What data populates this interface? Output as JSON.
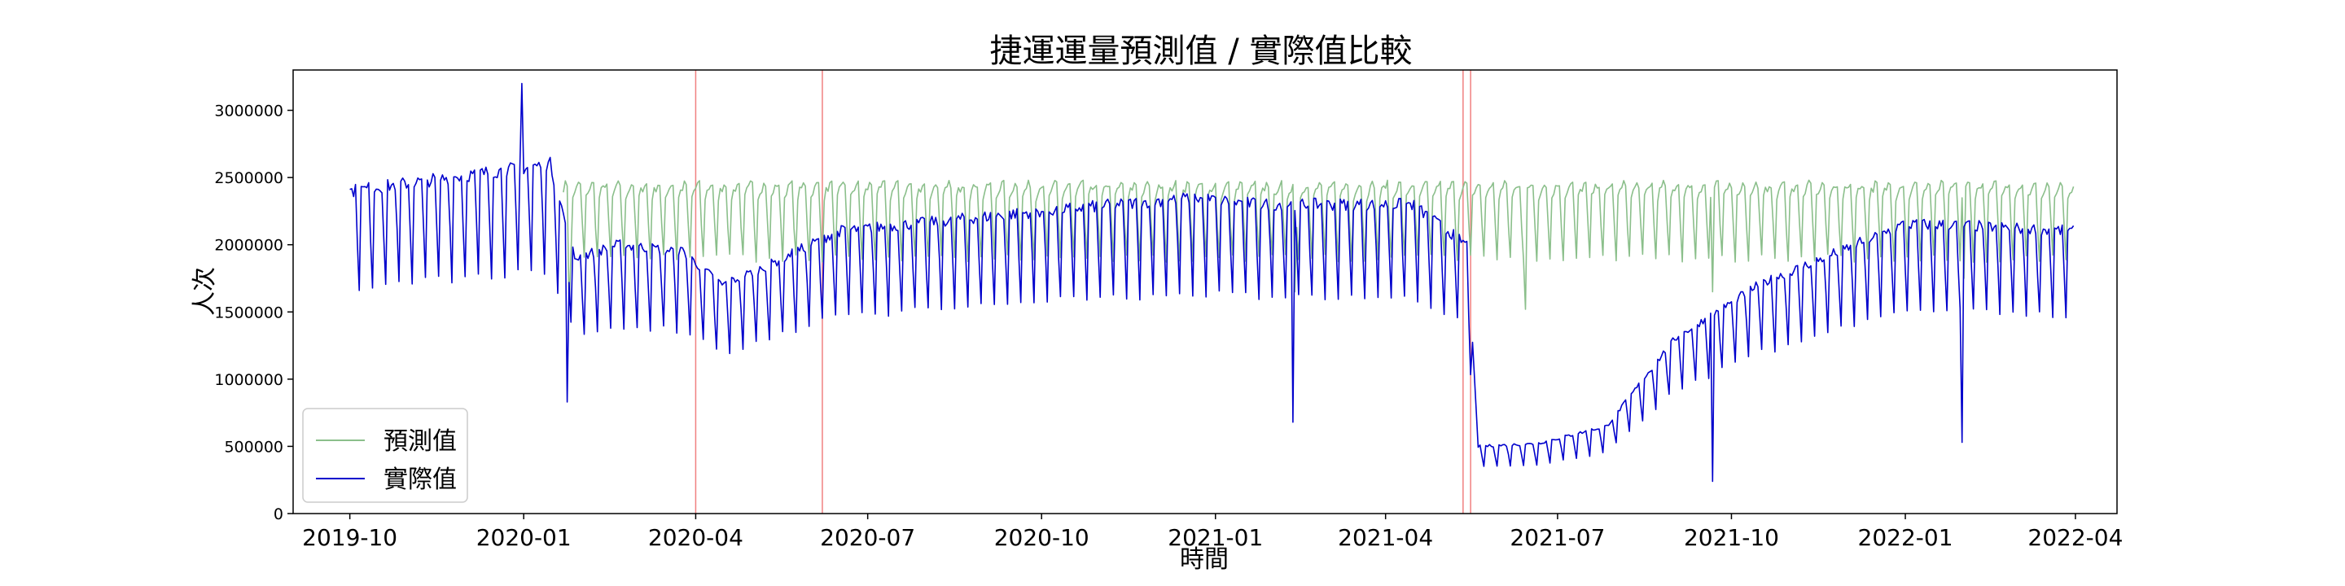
{
  "chart_data": {
    "type": "line",
    "title": "捷運運量預測值 / 實際值比較",
    "xlabel": "時間",
    "ylabel": "人次",
    "ylim": [
      0,
      3300000
    ],
    "y_ticks": [
      0,
      500000,
      1000000,
      1500000,
      2000000,
      2500000,
      3000000
    ],
    "x_ticks": [
      "2019-10",
      "2020-01",
      "2020-04",
      "2020-07",
      "2020-10",
      "2021-01",
      "2021-04",
      "2021-07",
      "2021-10",
      "2022-01",
      "2022-04"
    ],
    "x_range": [
      "2019-09-01",
      "2022-04-23"
    ],
    "grid": false,
    "legend": "bottom-left",
    "vertical_markers": [
      "2020-04-01",
      "2020-06-07",
      "2021-05-12",
      "2021-05-16"
    ],
    "colors": {
      "predicted": "#8bbf8b",
      "actual": "#0000cc",
      "marker": "#f08080",
      "axis": "#000000"
    },
    "series": [
      {
        "name": "預測值",
        "color": "#8bbf8b",
        "start": "2020-01-22",
        "end": "2022-03-31",
        "weekly_pattern": {
          "weekday": [
            2350000,
            2400000,
            2420000,
            2450000,
            2450000
          ],
          "saturday": 2150000,
          "sunday": 1900000
        },
        "holiday_dips": [
          {
            "date": "2020-01-25",
            "value": 1550000
          },
          {
            "date": "2021-02-12",
            "value": 1650000
          },
          {
            "date": "2021-06-14",
            "value": 1520000
          },
          {
            "date": "2021-09-21",
            "value": 1650000
          },
          {
            "date": "2022-02-01",
            "value": 1750000
          }
        ]
      },
      {
        "name": "實際值",
        "color": "#0000cc",
        "start": "2019-10-01",
        "end": "2022-03-31",
        "weekday_level": [
          [
            "2019-10-01",
            2400000
          ],
          [
            "2020-01-15",
            2600000
          ],
          [
            "2020-01-28",
            1900000
          ],
          [
            "2020-02-20",
            2000000
          ],
          [
            "2020-03-25",
            1950000
          ],
          [
            "2020-04-15",
            1700000
          ],
          [
            "2020-05-10",
            1850000
          ],
          [
            "2020-06-15",
            2100000
          ],
          [
            "2020-10-01",
            2250000
          ],
          [
            "2020-12-20",
            2350000
          ],
          [
            "2021-01-25",
            2300000
          ],
          [
            "2021-04-15",
            2300000
          ],
          [
            "2021-05-14",
            2000000
          ],
          [
            "2021-05-20",
            500000
          ],
          [
            "2021-06-20",
            520000
          ],
          [
            "2021-07-27",
            650000
          ],
          [
            "2021-09-01",
            1300000
          ],
          [
            "2021-10-15",
            1700000
          ],
          [
            "2021-12-31",
            2150000
          ],
          [
            "2022-01-25",
            2150000
          ],
          [
            "2022-03-31",
            2100000
          ]
        ],
        "weekend_ratio": {
          "saturday": 0.85,
          "sunday": 0.7
        },
        "events": [
          {
            "date": "2019-12-31",
            "value": 3200000
          },
          {
            "date": "2020-01-24",
            "value": 830000
          },
          {
            "date": "2021-02-11",
            "value": 680000
          },
          {
            "date": "2021-09-21",
            "value": 240000
          },
          {
            "date": "2022-01-31",
            "value": 530000
          }
        ]
      }
    ]
  }
}
